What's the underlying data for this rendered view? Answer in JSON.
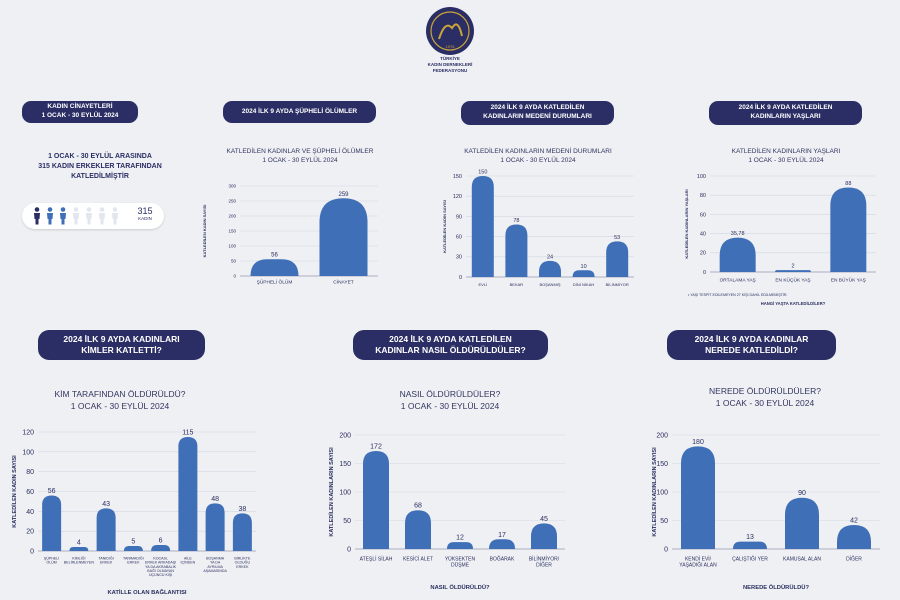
{
  "header": {
    "org_name": "TÜRKİYE\nKADIN DERNEKLERİ\nFEDERASYONU",
    "logo_year": "1976",
    "brand_color": "#2b2e64",
    "bar_color": "#3f6fb6"
  },
  "summary": {
    "pill_line1": "KADIN CİNAYETLERİ",
    "pill_line2": "1 OCAK - 30 EYLÜL 2024",
    "text": "1 OCAK - 30 EYLÜL ARASINDA\n315 KADIN ERKEKLER TARAFINDAN\nKATLEDİLMİŞTİR",
    "count": "315",
    "count_label": "KADIN"
  },
  "panels": [
    {
      "pill": [
        "2024 İLK 9 AYDA ŞÜPHELİ ÖLÜMLER"
      ],
      "chart_title": [
        "KATLEDİLEN KADINLAR VE ŞÜPHELİ ÖLÜMLER",
        "1 OCAK - 30 EYLÜL 2024"
      ]
    },
    {
      "pill": [
        "2024 İLK 9 AYDA KATLEDİLEN",
        "KADINLARIN MEDENİ DURUMLARI"
      ],
      "chart_title": [
        "KATLEDİLEN KADINLARIN MEDENİ DURUMLARI",
        "1 OCAK - 30 EYLÜL 2024"
      ]
    },
    {
      "pill": [
        "2024 İLK 9 AYDA  KATLEDİLEN",
        "KADINLARIN YAŞLARI"
      ],
      "chart_title": [
        "KATLEDİLEN KADINLARIN YAŞLARI",
        "1 OCAK - 30 EYLÜL 2024"
      ]
    },
    {
      "pill": [
        "2024 İLK 9 AYDA KADINLARI",
        "KİMLER KATLETTİ?"
      ],
      "chart_title": [
        "KİM TARAFINDAN ÖLDÜRÜLDÜ?",
        "1 OCAK - 30 EYLÜL 2024"
      ]
    },
    {
      "pill": [
        "2024 İLK 9 AYDA KATLEDİLEN",
        "KADINLAR NASIL ÖLDÜRÜLDÜLER?"
      ],
      "chart_title": [
        "NASIL ÖLDÜRÜLDÜLER?",
        "1 OCAK - 30 EYLÜL 2024"
      ]
    },
    {
      "pill": [
        "2024 İLK 9 AYDA KADINLAR",
        "NEREDE KATLEDİLDİ?"
      ],
      "chart_title": [
        "NEREDE ÖLDÜRÜLDÜLER?",
        "1 OCAK - 30 EYLÜL 2024"
      ]
    }
  ],
  "chart_data": [
    {
      "type": "bar",
      "ylabel": "KATLEDİLEN KADIN SAYISI",
      "xlabel": "",
      "ylim": [
        0,
        300
      ],
      "yticks": [
        0,
        50,
        100,
        150,
        200,
        250,
        300
      ],
      "categories": [
        "ŞÜPHELİ ÖLÜM",
        "CİNAYET"
      ],
      "values": [
        56,
        259
      ],
      "labels": [
        "56",
        "259"
      ]
    },
    {
      "type": "bar",
      "ylabel": "KATLEDİLEN KADIN SAYISI",
      "xlabel": "",
      "ylim": [
        0,
        150
      ],
      "yticks": [
        0,
        30,
        60,
        90,
        120,
        150
      ],
      "categories": [
        "EVLİ",
        "BEKAR",
        "BOŞANMIŞ",
        "DİNİ NİKAH",
        "BİLİNMİYOR"
      ],
      "values": [
        150,
        78,
        24,
        10,
        53
      ],
      "labels": [
        "150",
        "78",
        "24",
        "10",
        "53"
      ]
    },
    {
      "type": "bar",
      "ylabel": "KATLEDİLEN KADINLARIN YAŞLARI",
      "xlabel": "HANGİ YAŞTA KATLEDİLDİLER?",
      "footnote": "• YAŞI TESPİT EDİLEMEYEN 27 KİŞİ DAHİL EDİLMEMİŞTİR.",
      "ylim": [
        0,
        100
      ],
      "yticks": [
        0,
        20,
        40,
        60,
        80,
        100
      ],
      "categories": [
        "ORTALAMA YAŞ",
        "EN KÜÇÜK YAŞ",
        "EN BÜYÜK YAŞ"
      ],
      "values": [
        35.78,
        2,
        88
      ],
      "labels": [
        "35,78",
        "2",
        "88"
      ]
    },
    {
      "type": "bar",
      "ylabel": "KATLEDİLEN KADIN SAYISI",
      "xlabel": "KATİLLE OLAN BAĞLANTISI",
      "ylim": [
        0,
        120
      ],
      "yticks": [
        0,
        20,
        40,
        60,
        80,
        100,
        120
      ],
      "categories": [
        "ŞÜPHELİ\nÖLÜM",
        "KİMLİĞİ\nBELİRLENMEYEN",
        "TANIDIĞI\nERKEK",
        "TANIMADIĞI\nERKEK",
        "KOCASI,\nERKEK ARKADAŞI\nYA DA AKRABALIK\nBAĞI OLMAYAN\nÜÇÜNCÜ KİŞİ",
        "AİLE\nİÇİNDEN",
        "BOŞANMA\nYA DA\nAYRILMA\nAŞAMASINDA",
        "BİRLİKTE\nOLDUĞU\nERKEK"
      ],
      "values": [
        56,
        4,
        43,
        5,
        6,
        115,
        48,
        38
      ],
      "labels": [
        "56",
        "4",
        "43",
        "5",
        "6",
        "115",
        "48",
        "38"
      ]
    },
    {
      "type": "bar",
      "ylabel": "KATLEDİLEN KADINLARIN SAYISI",
      "xlabel": "NASIL ÖLDÜRÜLDÜ?",
      "ylim": [
        0,
        200
      ],
      "yticks": [
        0,
        50,
        100,
        150,
        200
      ],
      "categories": [
        "ATEŞLİ SİLAH",
        "KESİCİ ALET",
        "YÜKSEKTEN\nDÜŞME",
        "BOĞARAK",
        "BİLİNMİYOR/\nDİĞER"
      ],
      "values": [
        172,
        68,
        12,
        17,
        45
      ],
      "labels": [
        "172",
        "68",
        "12",
        "17",
        "45"
      ]
    },
    {
      "type": "bar",
      "ylabel": "KATLEDİLEN KADINLARIN SAYISI",
      "xlabel": "NEREDE ÖLDÜRÜLDÜ?",
      "ylim": [
        0,
        200
      ],
      "yticks": [
        0,
        50,
        100,
        150,
        200
      ],
      "categories": [
        "KENDİ EVİ/\nYAŞADIĞI ALAN",
        "ÇALIŞTIĞI YER",
        "KAMUSAL ALAN",
        "DİĞER"
      ],
      "values": [
        180,
        13,
        90,
        42
      ],
      "labels": [
        "180",
        "13",
        "90",
        "42"
      ]
    }
  ]
}
